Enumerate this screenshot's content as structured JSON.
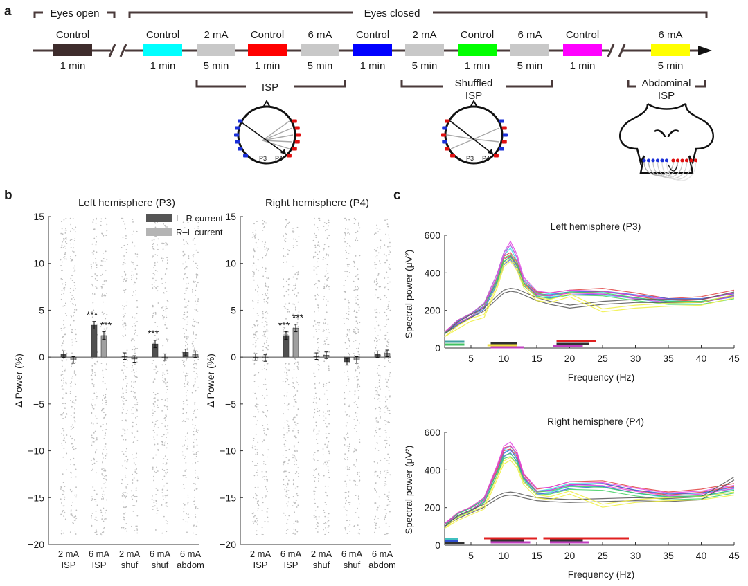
{
  "panels": {
    "a": "a",
    "b": "b",
    "c": "c"
  },
  "colors": {
    "black_control": "#3e2c2c",
    "cyan": "#00ffff",
    "gray": "#c8c8c8",
    "red": "#ff0000",
    "blue": "#0000ff",
    "green": "#00ff00",
    "magenta": "#ff00ff",
    "yellow": "#ffff00",
    "bracket": "#4a3a3a",
    "dark_bar": "#555555",
    "light_bar": "#a0a0a0"
  },
  "panel_a": {
    "eyes_open": "Eyes open",
    "eyes_closed": "Eyes closed",
    "blocks": [
      {
        "label": "Control",
        "duration": "1 min",
        "color": "#3e2c2c"
      },
      {
        "label": "Control",
        "duration": "1 min",
        "color": "#00ffff"
      },
      {
        "label": "2 mA",
        "duration": "5 min",
        "color": "#c8c8c8"
      },
      {
        "label": "Control",
        "duration": "1 min",
        "color": "#ff0000"
      },
      {
        "label": "6 mA",
        "duration": "5 min",
        "color": "#c8c8c8"
      },
      {
        "label": "Control",
        "duration": "1 min",
        "color": "#0000ff"
      },
      {
        "label": "2 mA",
        "duration": "5 min",
        "color": "#c8c8c8"
      },
      {
        "label": "Control",
        "duration": "1 min",
        "color": "#00ff00"
      },
      {
        "label": "6 mA",
        "duration": "5 min",
        "color": "#c8c8c8"
      },
      {
        "label": "Control",
        "duration": "1 min",
        "color": "#ff00ff"
      },
      {
        "label": "6 mA",
        "duration": "5 min",
        "color": "#ffff00"
      }
    ],
    "brackets": [
      "ISP",
      "Shuffled",
      "ISP",
      "Abdominal",
      "ISP"
    ],
    "electrodes": [
      "P3",
      "P4",
      "P3",
      "P4"
    ]
  },
  "panel_b": {
    "left_title": "Left hemisphere (P3)",
    "right_title": "Right hemisphere (P4)",
    "ylabel": "Δ Power (%)",
    "ylim": [
      -20,
      15
    ],
    "yticks": [
      "15",
      "10",
      "5",
      "0",
      "−5",
      "−10",
      "−15",
      "−20"
    ],
    "legend": [
      "L–R current",
      "R–L current"
    ],
    "xtick_top": [
      "2 mA",
      "6 mA",
      "2 mA",
      "6 mA",
      "6 mA"
    ],
    "xtick_bottom": [
      "ISP",
      "ISP",
      "shuf",
      "shuf",
      "abdom"
    ],
    "sig": "***"
  },
  "panel_c": {
    "top_title": "Left hemisphere (P3)",
    "bottom_title": "Right hemisphere (P4)",
    "ylabel": "Spectral power (μV²)",
    "xlabel": "Frequency (Hz)",
    "yticks": [
      "600",
      "400",
      "200",
      "0"
    ],
    "xticks": [
      "5",
      "10",
      "15",
      "20",
      "25",
      "30",
      "35",
      "40",
      "45"
    ]
  },
  "chart_data": [
    {
      "type": "bar",
      "title": "Left hemisphere (P3)",
      "ylabel": "Δ Power (%)",
      "ylim": [
        -20,
        15
      ],
      "categories": [
        "2 mA ISP",
        "6 mA ISP",
        "2 mA shuf",
        "6 mA shuf",
        "6 mA abdom"
      ],
      "series": [
        {
          "name": "L–R current",
          "values": [
            0.3,
            3.4,
            0.1,
            1.4,
            0.5
          ]
        },
        {
          "name": "R–L current",
          "values": [
            -0.3,
            2.3,
            -0.2,
            0.0,
            0.3
          ]
        }
      ],
      "significance": [
        "",
        "***|***",
        "",
        "***|",
        ""
      ]
    },
    {
      "type": "bar",
      "title": "Right hemisphere (P4)",
      "ylabel": "Δ Power (%)",
      "ylim": [
        -20,
        15
      ],
      "categories": [
        "2 mA ISP",
        "6 mA ISP",
        "2 mA shuf",
        "6 mA shuf",
        "6 mA abdom"
      ],
      "series": [
        {
          "name": "L–R current",
          "values": [
            0.0,
            2.3,
            0.1,
            -0.5,
            0.3
          ]
        },
        {
          "name": "R–L current",
          "values": [
            -0.1,
            3.1,
            0.2,
            -0.3,
            0.4
          ]
        }
      ],
      "significance": [
        "",
        "***|***",
        "",
        "",
        ""
      ]
    },
    {
      "type": "line",
      "title": "Left hemisphere (P3)",
      "xlabel": "Frequency (Hz)",
      "ylabel": "Spectral power (μV²)",
      "xlim": [
        1,
        45
      ],
      "ylim": [
        0,
        600
      ],
      "x": [
        1,
        3,
        5,
        7,
        9,
        10,
        11,
        12,
        13,
        15,
        17,
        20,
        25,
        30,
        35,
        40,
        45
      ],
      "series": [
        {
          "name": "Cyan",
          "values": [
            80,
            140,
            175,
            230,
            390,
            500,
            540,
            470,
            360,
            290,
            280,
            290,
            290,
            270,
            245,
            250,
            285
          ]
        },
        {
          "name": "Red",
          "values": [
            85,
            140,
            175,
            225,
            370,
            480,
            500,
            450,
            350,
            290,
            285,
            300,
            310,
            285,
            255,
            265,
            300
          ]
        },
        {
          "name": "Blue",
          "values": [
            80,
            135,
            170,
            215,
            350,
            450,
            480,
            430,
            340,
            280,
            275,
            290,
            295,
            275,
            255,
            255,
            280
          ]
        },
        {
          "name": "Green",
          "values": [
            80,
            140,
            175,
            225,
            360,
            470,
            490,
            440,
            340,
            285,
            270,
            290,
            285,
            260,
            240,
            240,
            270
          ]
        },
        {
          "name": "Magenta",
          "values": [
            85,
            140,
            175,
            230,
            390,
            500,
            560,
            490,
            370,
            295,
            285,
            300,
            295,
            270,
            250,
            250,
            285
          ]
        },
        {
          "name": "Black",
          "values": [
            75,
            130,
            170,
            205,
            270,
            300,
            310,
            305,
            290,
            260,
            240,
            220,
            240,
            250,
            250,
            250,
            290
          ]
        },
        {
          "name": "Yellow",
          "values": [
            60,
            110,
            150,
            170,
            330,
            440,
            470,
            420,
            330,
            260,
            250,
            280,
            200,
            220,
            230,
            235,
            275
          ]
        }
      ]
    },
    {
      "type": "line",
      "title": "Right hemisphere (P4)",
      "xlabel": "Frequency (Hz)",
      "ylabel": "Spectral power (μV²)",
      "xlim": [
        1,
        45
      ],
      "ylim": [
        0,
        600
      ],
      "x": [
        1,
        3,
        5,
        7,
        9,
        10,
        11,
        12,
        13,
        15,
        17,
        20,
        25,
        30,
        35,
        40,
        45
      ],
      "series": [
        {
          "name": "Cyan",
          "values": [
            110,
            160,
            190,
            240,
            400,
            500,
            520,
            470,
            360,
            280,
            290,
            320,
            320,
            285,
            260,
            270,
            290
          ]
        },
        {
          "name": "Red",
          "values": [
            115,
            165,
            195,
            245,
            410,
            510,
            520,
            480,
            370,
            290,
            300,
            330,
            335,
            300,
            275,
            290,
            320
          ]
        },
        {
          "name": "Blue",
          "values": [
            110,
            160,
            190,
            235,
            380,
            480,
            500,
            450,
            350,
            280,
            285,
            310,
            320,
            285,
            265,
            270,
            300
          ]
        },
        {
          "name": "Green",
          "values": [
            110,
            160,
            190,
            235,
            380,
            470,
            480,
            440,
            345,
            275,
            280,
            305,
            300,
            270,
            250,
            255,
            285
          ]
        },
        {
          "name": "Magenta",
          "values": [
            115,
            165,
            195,
            245,
            420,
            520,
            540,
            490,
            375,
            295,
            300,
            330,
            325,
            295,
            270,
            280,
            310
          ]
        },
        {
          "name": "Black",
          "values": [
            100,
            150,
            180,
            210,
            255,
            270,
            275,
            270,
            260,
            245,
            240,
            235,
            240,
            245,
            240,
            250,
            355
          ]
        },
        {
          "name": "Yellow",
          "values": [
            90,
            140,
            170,
            200,
            360,
            440,
            460,
            420,
            330,
            260,
            250,
            280,
            210,
            235,
            245,
            250,
            275
          ]
        }
      ]
    }
  ]
}
